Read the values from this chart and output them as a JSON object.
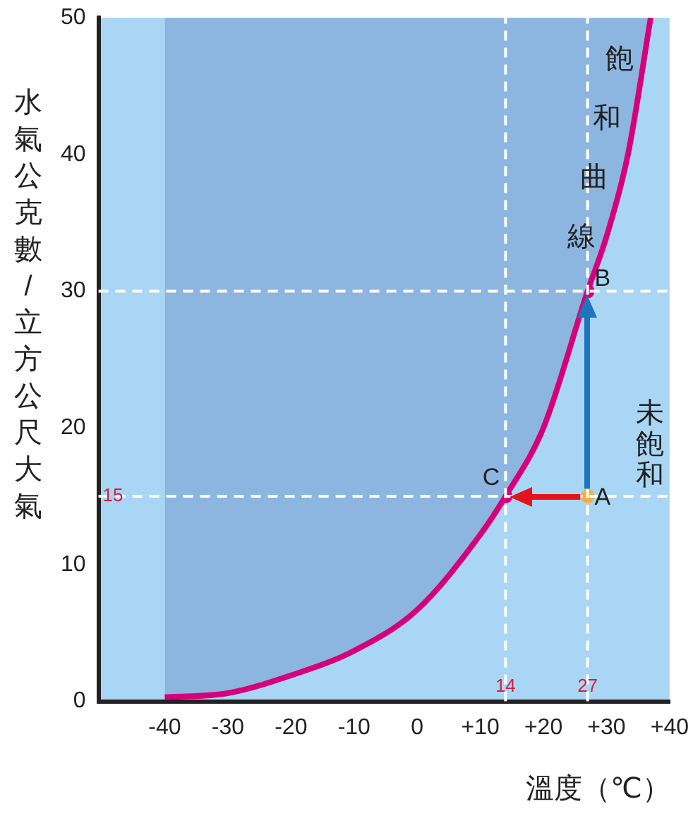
{
  "chart_data": {
    "type": "line",
    "ylabel": "水氣公克數/立方公尺大氣",
    "xlabel": "溫度（℃）",
    "xlim": [
      -50.5,
      40
    ],
    "ylim": [
      0,
      50
    ],
    "xticks": [
      -40,
      -30,
      -20,
      -10,
      0,
      {
        "value": 10,
        "label": "+10"
      },
      {
        "value": 20,
        "label": "+20"
      },
      {
        "value": 30,
        "label": "+30"
      },
      {
        "value": 40,
        "label": "+40"
      }
    ],
    "yticks": [
      0,
      10,
      20,
      30,
      40,
      50
    ],
    "grid": false,
    "legend": false,
    "series": [
      {
        "name": "飽和曲線",
        "color": "#d6007a",
        "x": [
          -40,
          -30,
          -20,
          -10,
          0,
          10,
          14,
          20,
          27,
          30,
          33.4,
          37
        ],
        "values": [
          0.3,
          0.6,
          1.9,
          3.7,
          6.7,
          12.2,
          15,
          20,
          30,
          34,
          40,
          50
        ]
      },
      {
        "type": "scatter",
        "colors": [
          "#f5b041",
          "#d6007a",
          "#d6007a"
        ],
        "x": [
          27,
          27,
          14
        ],
        "values": [
          15,
          30,
          15
        ],
        "value_labels": [
          "A",
          "B",
          "C"
        ]
      }
    ],
    "ref_lines": [
      {
        "axis": "y",
        "value": 30,
        "color": "#ffffff",
        "line_style": "dashed"
      },
      {
        "axis": "y",
        "value": 15,
        "label": "15",
        "color": "#ffffff",
        "line_style": "dashed"
      },
      {
        "axis": "x",
        "value": 14,
        "label": "14",
        "color": "#ffffff",
        "line_style": "dashed"
      },
      {
        "axis": "x",
        "value": 27,
        "label": "27",
        "color": "#ffffff",
        "line_style": "dashed"
      }
    ],
    "annotations": [
      "未飽和"
    ]
  }
}
